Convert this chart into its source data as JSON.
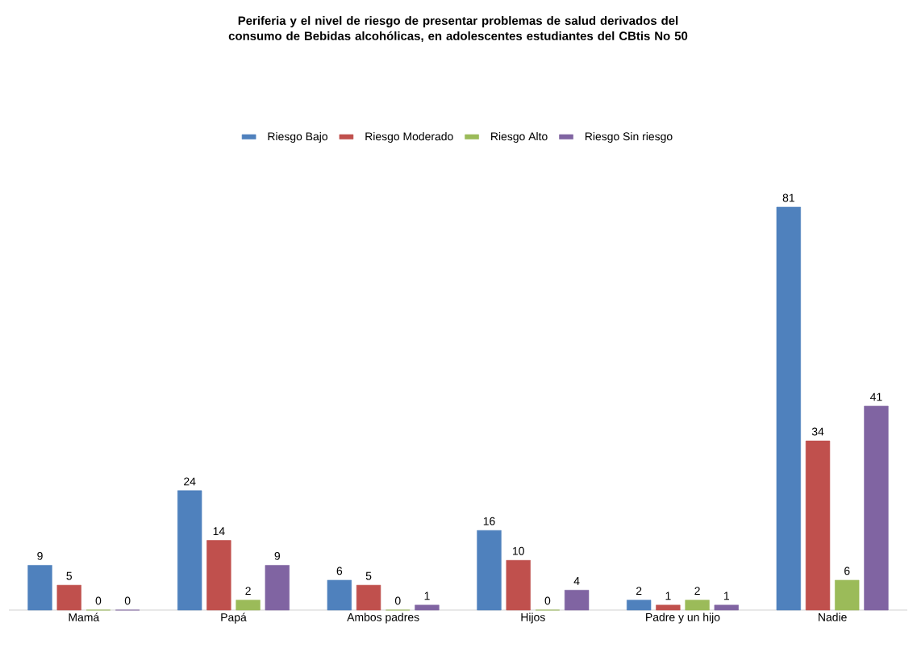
{
  "chart_data": {
    "type": "bar",
    "title": "Periferia y el nivel de riesgo de presentar problemas de salud derivados del consumo de Bebidas alcohólicas, en adolescentes estudiantes del CBtis No 50",
    "categories": [
      "Mamá",
      "Papá",
      "Ambos padres",
      "Hijos",
      "Padre y un hijo",
      "Nadie"
    ],
    "series": [
      {
        "name": "Riesgo Bajo",
        "color": "#4f81bd",
        "values": [
          9,
          24,
          6,
          16,
          2,
          81
        ]
      },
      {
        "name": "Riesgo Moderado",
        "color": "#c0504d",
        "values": [
          5,
          14,
          5,
          10,
          1,
          34
        ]
      },
      {
        "name": "Riesgo Alto",
        "color": "#9bbb59",
        "values": [
          0,
          2,
          0,
          0,
          2,
          6
        ]
      },
      {
        "name": "Riesgo Sin riesgo",
        "color": "#8064a2",
        "values": [
          0,
          9,
          1,
          4,
          1,
          41
        ]
      }
    ],
    "data_labels": true,
    "legend": "top"
  }
}
